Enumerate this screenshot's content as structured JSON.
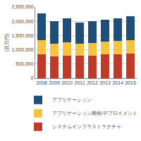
{
  "chart_data": {
    "type": "bar",
    "stacked": true,
    "y_label": "(百万円)",
    "categories": [
      "2008",
      "2009",
      "2010",
      "2011",
      "2012",
      "2013",
      "2014",
      "2015"
    ],
    "series": [
      {
        "name": "システムインフラストラクチャ",
        "color": "#c0392b",
        "values": [
          830000,
          770000,
          800000,
          790000,
          800000,
          830000,
          840000,
          860000
        ]
      },
      {
        "name": "アプリケーション開発/デプロイメント",
        "color": "#f5c342",
        "values": [
          500000,
          450000,
          470000,
          430000,
          440000,
          460000,
          470000,
          480000
        ]
      },
      {
        "name": "アプリケーション",
        "color": "#1f4e79",
        "values": [
          950000,
          780000,
          830000,
          730000,
          760000,
          760000,
          790000,
          840000
        ]
      }
    ],
    "ylim": [
      0,
      2500000
    ],
    "yticks": [
      0,
      {
        "value": 500000,
        "label": "500,000"
      },
      {
        "value": 1000000,
        "label": "1,000,000"
      },
      {
        "value": 1500000,
        "label": "1,500,000"
      },
      {
        "value": 2000000,
        "label": "2,000,000"
      },
      {
        "value": 2500000,
        "label": "2,500,000"
      }
    ],
    "grid": true,
    "legend": "bottom"
  }
}
